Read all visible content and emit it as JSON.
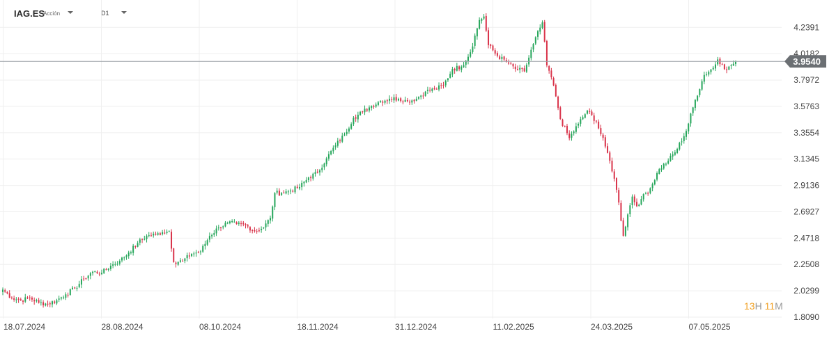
{
  "header": {
    "symbol": "IAG.ES",
    "security_type": "Acción",
    "timeframe": "D1"
  },
  "countdown": {
    "hours": "13",
    "hours_unit": "H",
    "minutes": "11",
    "minutes_unit": "M"
  },
  "colors": {
    "up": "#26a65b",
    "down": "#d9334a",
    "price_line": "#9aa0a6",
    "price_label_bg": "#6b6f73",
    "grid": "#efefef"
  },
  "chart_data": {
    "type": "candlestick",
    "title": "",
    "xlabel": "",
    "ylabel": "",
    "ylim": [
      1.809,
      4.41
    ],
    "grid": true,
    "y_ticks": [
      "4.2391",
      "4.0182",
      "3.7972",
      "3.5763",
      "3.3554",
      "3.1345",
      "2.9136",
      "2.6927",
      "2.4718",
      "2.2508",
      "2.0299",
      "1.8090"
    ],
    "x_ticks": [
      "18.07.2024",
      "28.08.2024",
      "08.10.2024",
      "18.11.2024",
      "31.12.2024",
      "11.02.2025",
      "24.03.2025",
      "07.05.2025"
    ],
    "current_price": 3.954,
    "current_price_label": "3.9540",
    "series": [
      {
        "close_points": [
          [
            0,
            2.04
          ],
          [
            4,
            1.97
          ],
          [
            8,
            1.95
          ],
          [
            12,
            1.97
          ],
          [
            16,
            1.93
          ],
          [
            20,
            1.92
          ],
          [
            24,
            1.95
          ],
          [
            28,
            2.0
          ],
          [
            32,
            2.05
          ],
          [
            36,
            2.13
          ],
          [
            40,
            2.19
          ],
          [
            44,
            2.18
          ],
          [
            48,
            2.24
          ],
          [
            52,
            2.28
          ],
          [
            56,
            2.35
          ],
          [
            60,
            2.43
          ],
          [
            64,
            2.49
          ],
          [
            68,
            2.5
          ],
          [
            71,
            2.52
          ],
          [
            74,
            2.53
          ],
          [
            76,
            2.27
          ],
          [
            80,
            2.28
          ],
          [
            84,
            2.34
          ],
          [
            88,
            2.36
          ],
          [
            92,
            2.49
          ],
          [
            96,
            2.56
          ],
          [
            100,
            2.6
          ],
          [
            104,
            2.59
          ],
          [
            108,
            2.58
          ],
          [
            112,
            2.53
          ],
          [
            116,
            2.56
          ],
          [
            119,
            2.64
          ],
          [
            121,
            2.85
          ],
          [
            124,
            2.85
          ],
          [
            128,
            2.87
          ],
          [
            132,
            2.9
          ],
          [
            136,
            2.98
          ],
          [
            140,
            3.02
          ],
          [
            144,
            3.14
          ],
          [
            148,
            3.25
          ],
          [
            152,
            3.34
          ],
          [
            156,
            3.48
          ],
          [
            160,
            3.53
          ],
          [
            164,
            3.58
          ],
          [
            168,
            3.62
          ],
          [
            172,
            3.64
          ],
          [
            176,
            3.64
          ],
          [
            180,
            3.62
          ],
          [
            184,
            3.64
          ],
          [
            188,
            3.7
          ],
          [
            192,
            3.72
          ],
          [
            196,
            3.75
          ],
          [
            200,
            3.89
          ],
          [
            204,
            3.91
          ],
          [
            208,
            4.03
          ],
          [
            212,
            4.3
          ],
          [
            214,
            4.33
          ],
          [
            216,
            4.09
          ],
          [
            220,
            4.0
          ],
          [
            224,
            3.95
          ],
          [
            228,
            3.89
          ],
          [
            232,
            3.87
          ],
          [
            236,
            4.1
          ],
          [
            240,
            4.28
          ],
          [
            242,
            3.92
          ],
          [
            244,
            3.82
          ],
          [
            246,
            3.66
          ],
          [
            248,
            3.47
          ],
          [
            252,
            3.31
          ],
          [
            256,
            3.43
          ],
          [
            260,
            3.54
          ],
          [
            264,
            3.45
          ],
          [
            268,
            3.24
          ],
          [
            270,
            3.12
          ],
          [
            272,
            2.97
          ],
          [
            274,
            2.77
          ],
          [
            276,
            2.49
          ],
          [
            278,
            2.67
          ],
          [
            280,
            2.82
          ],
          [
            282,
            2.74
          ],
          [
            284,
            2.8
          ],
          [
            288,
            2.89
          ],
          [
            292,
            3.05
          ],
          [
            296,
            3.12
          ],
          [
            300,
            3.22
          ],
          [
            304,
            3.37
          ],
          [
            308,
            3.63
          ],
          [
            312,
            3.84
          ],
          [
            316,
            3.9
          ],
          [
            318,
            3.97
          ],
          [
            320,
            3.93
          ],
          [
            322,
            3.88
          ],
          [
            324,
            3.92
          ],
          [
            326,
            3.95
          ]
        ]
      }
    ]
  }
}
